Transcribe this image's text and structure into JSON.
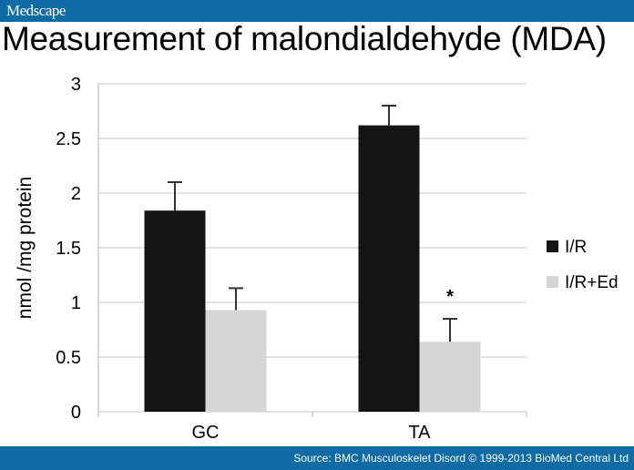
{
  "header": {
    "brand": "Medscape",
    "title": "Measurement of malondialdehyde (MDA)"
  },
  "footer": {
    "source": "Source: BMC Musculoskelet Disord © 1999-2013 BioMed Central Ltd"
  },
  "colors": {
    "header_bar": "#0e6ba3",
    "series_ir": "#141414",
    "series_ired": "#d6d6d6"
  },
  "chart_data": {
    "type": "bar",
    "title": "Measurement of malondialdehyde (MDA)",
    "xlabel": "",
    "ylabel": "nmol /mg protein",
    "ylim": [
      0,
      3
    ],
    "yticks": [
      "0",
      "0.5",
      "1",
      "1.5",
      "2",
      "2.5",
      "3"
    ],
    "grid": true,
    "legend_position": "right",
    "categories": [
      "GC",
      "TA"
    ],
    "series": [
      {
        "name": "I/R",
        "values": [
          1.84,
          2.62
        ],
        "error": [
          0.26,
          0.18
        ],
        "color": "#141414"
      },
      {
        "name": "I/R+Ed",
        "values": [
          0.93,
          0.64
        ],
        "error": [
          0.2,
          0.21
        ],
        "color": "#d6d6d6"
      }
    ],
    "annotations": [
      {
        "category": "TA",
        "series": "I/R+Ed",
        "text": "*"
      }
    ]
  }
}
